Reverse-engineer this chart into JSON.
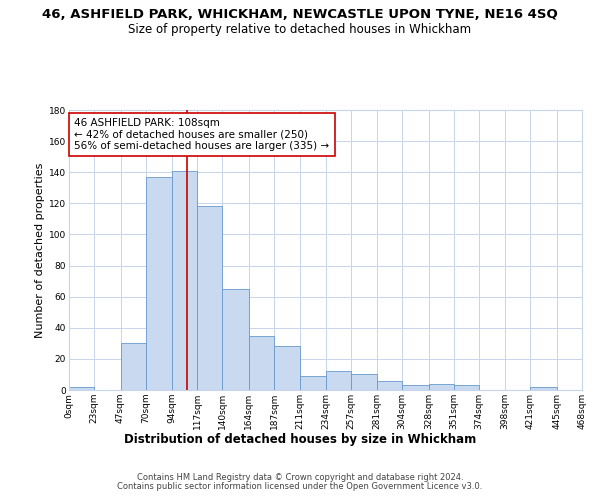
{
  "title": "46, ASHFIELD PARK, WHICKHAM, NEWCASTLE UPON TYNE, NE16 4SQ",
  "subtitle": "Size of property relative to detached houses in Whickham",
  "xlabel": "Distribution of detached houses by size in Whickham",
  "ylabel": "Number of detached properties",
  "bin_edges": [
    0,
    23,
    47,
    70,
    94,
    117,
    140,
    164,
    187,
    211,
    234,
    257,
    281,
    304,
    328,
    351,
    374,
    398,
    421,
    445,
    468
  ],
  "bar_heights": [
    2,
    0,
    30,
    137,
    141,
    118,
    65,
    35,
    28,
    9,
    12,
    10,
    6,
    3,
    4,
    3,
    0,
    0,
    2,
    0
  ],
  "tick_labels": [
    "0sqm",
    "23sqm",
    "47sqm",
    "70sqm",
    "94sqm",
    "117sqm",
    "140sqm",
    "164sqm",
    "187sqm",
    "211sqm",
    "234sqm",
    "257sqm",
    "281sqm",
    "304sqm",
    "328sqm",
    "351sqm",
    "374sqm",
    "398sqm",
    "421sqm",
    "445sqm",
    "468sqm"
  ],
  "bar_color": "#c9d9f0",
  "bar_edge_color": "#6699cc",
  "vline_x": 108,
  "vline_color": "#cc0000",
  "annotation_line1": "46 ASHFIELD PARK: 108sqm",
  "annotation_line2": "← 42% of detached houses are smaller (250)",
  "annotation_line3": "56% of semi-detached houses are larger (335) →",
  "annotation_box_color": "#ffffff",
  "annotation_box_edge_color": "#cc0000",
  "ylim": [
    0,
    180
  ],
  "yticks": [
    0,
    20,
    40,
    60,
    80,
    100,
    120,
    140,
    160,
    180
  ],
  "footer_line1": "Contains HM Land Registry data © Crown copyright and database right 2024.",
  "footer_line2": "Contains public sector information licensed under the Open Government Licence v3.0.",
  "background_color": "#ffffff",
  "grid_color": "#c8d4e8",
  "title_fontsize": 9.5,
  "subtitle_fontsize": 8.5,
  "xlabel_fontsize": 8.5,
  "ylabel_fontsize": 8,
  "tick_fontsize": 6.5,
  "annotation_fontsize": 7.5,
  "footer_fontsize": 6
}
